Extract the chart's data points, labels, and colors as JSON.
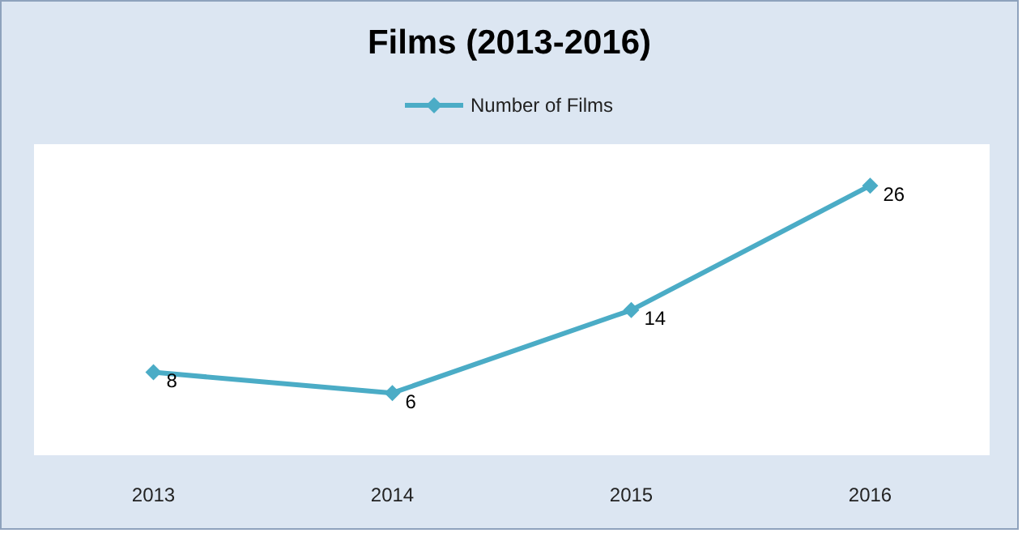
{
  "chart_data": {
    "type": "line",
    "title": "Films (2013-2016)",
    "categories": [
      "2013",
      "2014",
      "2015",
      "2016"
    ],
    "series": [
      {
        "name": "Number of Films",
        "color": "#4bacc6",
        "values": [
          8,
          6,
          14,
          26
        ]
      }
    ],
    "ylim": [
      0,
      30
    ],
    "data_labels": true,
    "marker": "diamond",
    "legend": "top",
    "grid": false,
    "line_style": "solid"
  }
}
